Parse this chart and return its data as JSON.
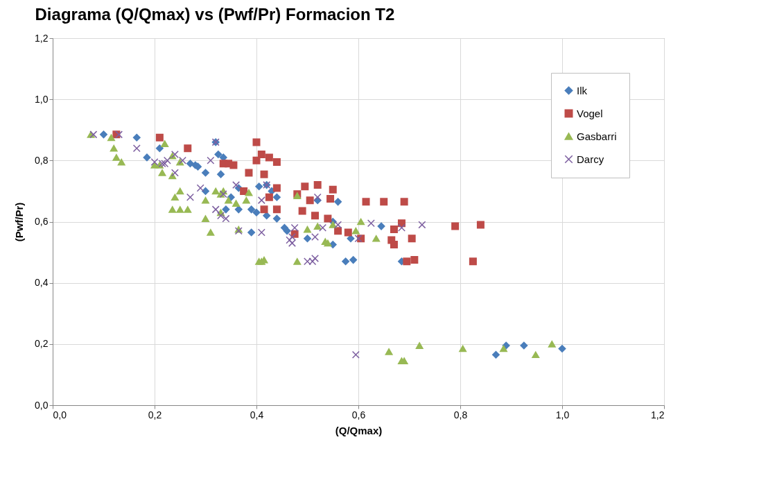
{
  "chart_data": {
    "type": "scatter",
    "title": "Diagrama  (Q/Qmax)  vs (Pwf/Pr)  Formacion T2",
    "xlabel": "(Q/Qmax)",
    "ylabel": "(Pwf/Pr)",
    "xlim": [
      0,
      1.2
    ],
    "ylim": [
      0,
      1.2
    ],
    "xticks": [
      {
        "value": 0,
        "label": "0,0"
      },
      {
        "value": 0.2,
        "label": "0,2"
      },
      {
        "value": 0.4,
        "label": "0,4"
      },
      {
        "value": 0.6,
        "label": "0,6"
      },
      {
        "value": 0.8,
        "label": "0,8"
      },
      {
        "value": 1,
        "label": "1,0"
      },
      {
        "value": 1.2,
        "label": "1,2"
      }
    ],
    "yticks": [
      {
        "value": 0,
        "label": "0,0"
      },
      {
        "value": 0.2,
        "label": "0,2"
      },
      {
        "value": 0.4,
        "label": "0,4"
      },
      {
        "value": 0.6,
        "label": "0,6"
      },
      {
        "value": 0.8,
        "label": "0,8"
      },
      {
        "value": 1,
        "label": "1,0"
      },
      {
        "value": 1.2,
        "label": "1,2"
      }
    ],
    "grid": true,
    "legend": "top right",
    "series": [
      {
        "name": "Ilk",
        "color": "#4a7ebb",
        "marker": "diamond",
        "x": [
          0.1,
          0.165,
          0.185,
          0.21,
          0.27,
          0.28,
          0.285,
          0.3,
          0.3,
          0.32,
          0.325,
          0.33,
          0.335,
          0.34,
          0.35,
          0.365,
          0.365,
          0.39,
          0.39,
          0.4,
          0.405,
          0.42,
          0.42,
          0.43,
          0.44,
          0.44,
          0.455,
          0.46,
          0.5,
          0.52,
          0.55,
          0.55,
          0.56,
          0.575,
          0.585,
          0.59,
          0.645,
          0.685,
          0.87,
          0.89,
          0.925,
          1.0
        ],
        "values": [
          0.885,
          0.875,
          0.81,
          0.84,
          0.79,
          0.785,
          0.78,
          0.76,
          0.7,
          0.86,
          0.82,
          0.755,
          0.81,
          0.64,
          0.68,
          0.71,
          0.64,
          0.565,
          0.64,
          0.63,
          0.715,
          0.72,
          0.62,
          0.7,
          0.61,
          0.68,
          0.58,
          0.57,
          0.545,
          0.67,
          0.525,
          0.6,
          0.665,
          0.47,
          0.545,
          0.475,
          0.585,
          0.47,
          0.165,
          0.195,
          0.195,
          0.185
        ]
      },
      {
        "name": "Vogel",
        "color": "#be4b48",
        "marker": "square",
        "x": [
          0.125,
          0.21,
          0.265,
          0.335,
          0.345,
          0.355,
          0.375,
          0.385,
          0.4,
          0.4,
          0.41,
          0.415,
          0.415,
          0.425,
          0.425,
          0.44,
          0.44,
          0.44,
          0.475,
          0.48,
          0.49,
          0.495,
          0.505,
          0.515,
          0.52,
          0.54,
          0.545,
          0.55,
          0.56,
          0.58,
          0.605,
          0.615,
          0.65,
          0.665,
          0.67,
          0.67,
          0.685,
          0.69,
          0.695,
          0.705,
          0.71,
          0.79,
          0.825,
          0.84
        ],
        "values": [
          0.885,
          0.875,
          0.84,
          0.79,
          0.79,
          0.785,
          0.7,
          0.76,
          0.86,
          0.8,
          0.82,
          0.755,
          0.64,
          0.81,
          0.68,
          0.795,
          0.71,
          0.64,
          0.56,
          0.69,
          0.635,
          0.715,
          0.67,
          0.62,
          0.72,
          0.61,
          0.675,
          0.705,
          0.57,
          0.565,
          0.545,
          0.665,
          0.665,
          0.54,
          0.575,
          0.525,
          0.595,
          0.665,
          0.47,
          0.545,
          0.475,
          0.585,
          0.47,
          0.59
        ]
      },
      {
        "name": "Gasbarri",
        "color": "#98b954",
        "marker": "triangle",
        "x": [
          0.075,
          0.115,
          0.12,
          0.125,
          0.135,
          0.2,
          0.21,
          0.215,
          0.22,
          0.235,
          0.235,
          0.235,
          0.24,
          0.25,
          0.25,
          0.25,
          0.265,
          0.3,
          0.3,
          0.31,
          0.32,
          0.33,
          0.33,
          0.335,
          0.345,
          0.36,
          0.365,
          0.38,
          0.385,
          0.405,
          0.41,
          0.415,
          0.48,
          0.48,
          0.5,
          0.52,
          0.535,
          0.54,
          0.55,
          0.595,
          0.605,
          0.635,
          0.66,
          0.685,
          0.69,
          0.72,
          0.805,
          0.885,
          0.948,
          0.98
        ],
        "values": [
          0.885,
          0.875,
          0.84,
          0.81,
          0.795,
          0.785,
          0.785,
          0.76,
          0.855,
          0.815,
          0.75,
          0.64,
          0.68,
          0.64,
          0.7,
          0.795,
          0.64,
          0.67,
          0.61,
          0.565,
          0.7,
          0.69,
          0.63,
          0.7,
          0.67,
          0.66,
          0.575,
          0.67,
          0.695,
          0.47,
          0.47,
          0.475,
          0.685,
          0.47,
          0.575,
          0.585,
          0.535,
          0.53,
          0.59,
          0.57,
          0.6,
          0.545,
          0.175,
          0.145,
          0.145,
          0.195,
          0.185,
          0.185,
          0.165,
          0.2
        ]
      },
      {
        "name": "Darcy",
        "color": "#7d5fa0",
        "marker": "cross",
        "x": [
          0.08,
          0.13,
          0.165,
          0.2,
          0.215,
          0.22,
          0.225,
          0.24,
          0.24,
          0.255,
          0.27,
          0.29,
          0.31,
          0.32,
          0.32,
          0.33,
          0.335,
          0.34,
          0.36,
          0.365,
          0.41,
          0.41,
          0.42,
          0.465,
          0.47,
          0.47,
          0.475,
          0.5,
          0.51,
          0.515,
          0.515,
          0.52,
          0.53,
          0.56,
          0.595,
          0.6,
          0.625,
          0.685,
          0.725
        ],
        "values": [
          0.885,
          0.885,
          0.84,
          0.795,
          0.79,
          0.79,
          0.8,
          0.76,
          0.82,
          0.8,
          0.68,
          0.71,
          0.8,
          0.86,
          0.64,
          0.62,
          0.69,
          0.61,
          0.72,
          0.57,
          0.565,
          0.67,
          0.72,
          0.54,
          0.53,
          0.55,
          0.58,
          0.47,
          0.47,
          0.48,
          0.55,
          0.68,
          0.58,
          0.59,
          0.165,
          0.545,
          0.595,
          0.58,
          0.59
        ]
      }
    ]
  }
}
